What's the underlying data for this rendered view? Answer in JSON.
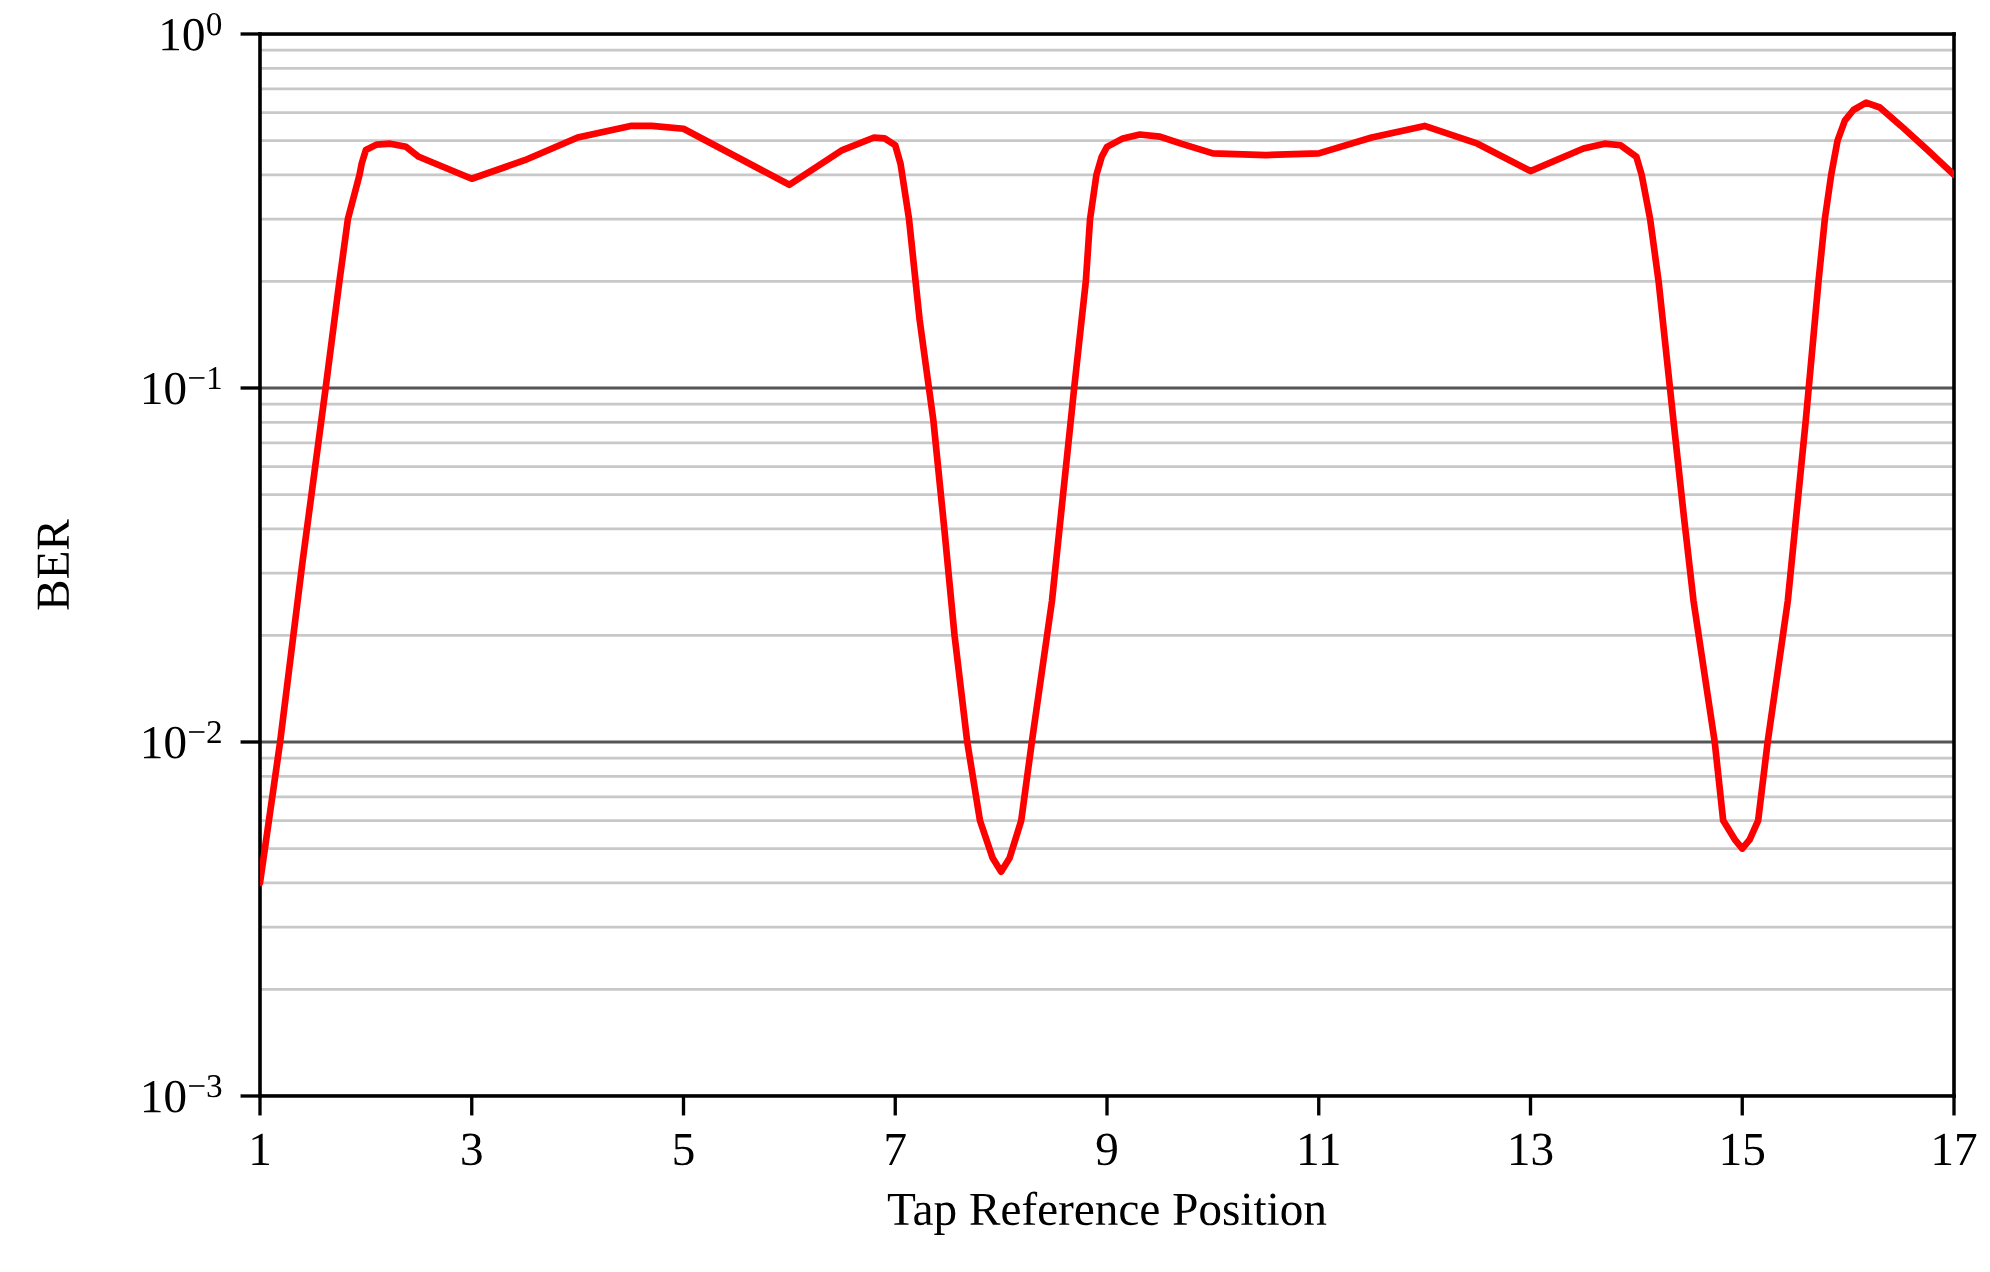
{
  "chart_data": {
    "type": "line",
    "xlabel": "Tap Reference Position",
    "ylabel": "BER",
    "x": [
      1,
      1.19,
      1.4,
      1.62,
      1.75,
      1.83,
      1.94,
      1.96,
      2,
      2.1,
      2.23,
      2.38,
      2.5,
      3,
      3.5,
      4,
      4.5,
      4.7,
      5,
      5.5,
      6,
      6.5,
      6.8,
      6.9,
      7,
      7.05,
      7.13,
      7.23,
      7.36,
      7.46,
      7.56,
      7.68,
      7.8,
      7.92,
      8,
      8.08,
      8.19,
      8.29,
      8.48,
      8.69,
      8.8,
      8.84,
      8.9,
      8.95,
      9,
      9.15,
      9.31,
      9.5,
      9.7,
      10,
      10.5,
      11,
      11.5,
      12,
      12.5,
      13,
      13.5,
      13.7,
      13.85,
      14,
      14.05,
      14.13,
      14.21,
      14.35,
      14.45,
      14.54,
      14.74,
      14.82,
      14.93,
      15,
      15.07,
      15.15,
      15.24,
      15.43,
      15.6,
      15.72,
      15.78,
      15.84,
      15.9,
      15.97,
      16.05,
      16.17,
      16.3,
      16.5,
      16.75,
      17
    ],
    "series": [
      {
        "color": "#ff0000",
        "values": [
          0.004,
          0.01,
          0.032,
          0.1,
          0.2,
          0.3,
          0.4,
          0.43,
          0.47,
          0.487,
          0.49,
          0.48,
          0.45,
          0.39,
          0.44,
          0.51,
          0.55,
          0.55,
          0.54,
          0.45,
          0.375,
          0.47,
          0.51,
          0.507,
          0.485,
          0.43,
          0.3,
          0.156,
          0.081,
          0.041,
          0.02,
          0.01,
          0.006,
          0.0047,
          0.0043,
          0.0047,
          0.006,
          0.01,
          0.025,
          0.1,
          0.2,
          0.3,
          0.4,
          0.45,
          0.48,
          0.507,
          0.52,
          0.513,
          0.49,
          0.46,
          0.455,
          0.46,
          0.51,
          0.55,
          0.49,
          0.41,
          0.475,
          0.49,
          0.485,
          0.45,
          0.4,
          0.3,
          0.2,
          0.081,
          0.043,
          0.025,
          0.01,
          0.006,
          0.0053,
          0.005,
          0.0053,
          0.006,
          0.01,
          0.025,
          0.081,
          0.2,
          0.3,
          0.4,
          0.5,
          0.57,
          0.61,
          0.64,
          0.62,
          0.55,
          0.47,
          0.4
        ]
      }
    ],
    "xlim": [
      1,
      17
    ],
    "xticks": [
      1,
      3,
      5,
      7,
      9,
      11,
      13,
      15,
      17
    ],
    "ylim": [
      0.001,
      1
    ],
    "yticks": [
      {
        "value": 0.001,
        "label": "10$^{−3}$"
      },
      {
        "value": 0.002,
        "label": null
      },
      {
        "value": 0.003,
        "label": null
      },
      {
        "value": 0.004,
        "label": null
      },
      {
        "value": 0.005,
        "label": null
      },
      {
        "value": 0.006,
        "label": null
      },
      {
        "value": 0.007,
        "label": null
      },
      {
        "value": 0.008,
        "label": null
      },
      {
        "value": 0.009,
        "label": null
      },
      {
        "value": 0.01,
        "label": "10$^{−2}$"
      },
      {
        "value": 0.02,
        "label": null
      },
      {
        "value": 0.03,
        "label": null
      },
      {
        "value": 0.04,
        "label": null
      },
      {
        "value": 0.05,
        "label": null
      },
      {
        "value": 0.06,
        "label": null
      },
      {
        "value": 0.07,
        "label": null
      },
      {
        "value": 0.08,
        "label": null
      },
      {
        "value": 0.09,
        "label": null
      },
      {
        "value": 0.1,
        "label": "10$^{−1}$"
      },
      {
        "value": 0.2,
        "label": null
      },
      {
        "value": 0.3,
        "label": null
      },
      {
        "value": 0.4,
        "label": null
      },
      {
        "value": 0.5,
        "label": null
      },
      {
        "value": 0.6,
        "label": null
      },
      {
        "value": 0.7,
        "label": null
      },
      {
        "value": 0.8,
        "label": null
      },
      {
        "value": 0.9,
        "label": null
      },
      {
        "value": 1,
        "label": "10$^{0}$"
      }
    ],
    "log": "y",
    "grid": "y",
    "line_style": "solid"
  }
}
